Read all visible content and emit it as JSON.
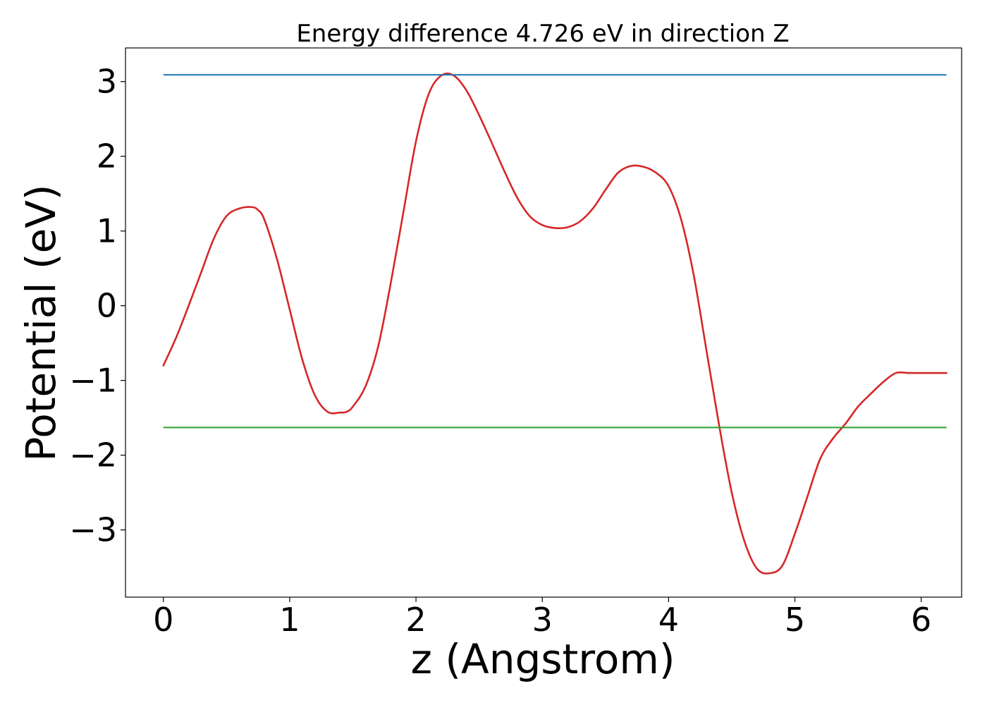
{
  "chart_data": {
    "type": "line",
    "title": "Energy difference 4.726 eV in direction Z",
    "xlabel": "z (Angstrom)",
    "ylabel": "Potential (eV)",
    "xlim": [
      -0.3,
      6.32
    ],
    "ylim": [
      -3.9,
      3.45
    ],
    "grid": false,
    "legend": "none",
    "x_ticks": [
      0,
      1,
      2,
      3,
      4,
      5,
      6
    ],
    "x_tick_labels": [
      "0",
      "1",
      "2",
      "3",
      "4",
      "5",
      "6"
    ],
    "y_ticks": [
      -3,
      -2,
      -1,
      0,
      1,
      2,
      3
    ],
    "y_tick_labels": [
      "−3",
      "−2",
      "−1",
      "0",
      "1",
      "2",
      "3"
    ],
    "series": [
      {
        "kind": "curve",
        "color": "#d62728",
        "x": [
          0.0,
          0.1,
          0.2,
          0.3,
          0.4,
          0.5,
          0.6,
          0.7,
          0.75,
          0.8,
          0.9,
          1.0,
          1.1,
          1.2,
          1.3,
          1.4,
          1.45,
          1.5,
          1.6,
          1.7,
          1.8,
          1.9,
          2.0,
          2.1,
          2.2,
          2.3,
          2.4,
          2.5,
          2.6,
          2.7,
          2.8,
          2.9,
          3.0,
          3.1,
          3.2,
          3.3,
          3.4,
          3.5,
          3.6,
          3.7,
          3.8,
          3.9,
          4.0,
          4.1,
          4.2,
          4.3,
          4.4,
          4.5,
          4.6,
          4.7,
          4.8,
          4.9,
          5.0,
          5.1,
          5.2,
          5.3,
          5.4,
          5.5,
          5.6,
          5.7,
          5.8,
          5.9,
          6.0,
          6.1,
          6.2
        ],
        "y": [
          -0.8,
          -0.43,
          0.0,
          0.45,
          0.9,
          1.2,
          1.3,
          1.32,
          1.28,
          1.15,
          0.62,
          -0.05,
          -0.72,
          -1.2,
          -1.42,
          -1.43,
          -1.42,
          -1.35,
          -1.08,
          -0.55,
          0.3,
          1.25,
          2.2,
          2.83,
          3.08,
          3.08,
          2.88,
          2.55,
          2.18,
          1.8,
          1.45,
          1.2,
          1.08,
          1.04,
          1.05,
          1.13,
          1.3,
          1.55,
          1.78,
          1.87,
          1.86,
          1.78,
          1.6,
          1.15,
          0.4,
          -0.6,
          -1.6,
          -2.5,
          -3.15,
          -3.52,
          -3.58,
          -3.48,
          -3.05,
          -2.55,
          -2.05,
          -1.78,
          -1.58,
          -1.35,
          -1.18,
          -1.02,
          -0.9,
          -0.9,
          -0.9,
          -0.9,
          -0.9
        ]
      },
      {
        "kind": "hline",
        "color": "#1f77b4",
        "y": 3.09,
        "x_range": [
          0.0,
          6.2
        ]
      },
      {
        "kind": "hline",
        "color": "#2ca02c",
        "y": -1.63,
        "x_range": [
          0.0,
          6.2
        ]
      }
    ]
  }
}
